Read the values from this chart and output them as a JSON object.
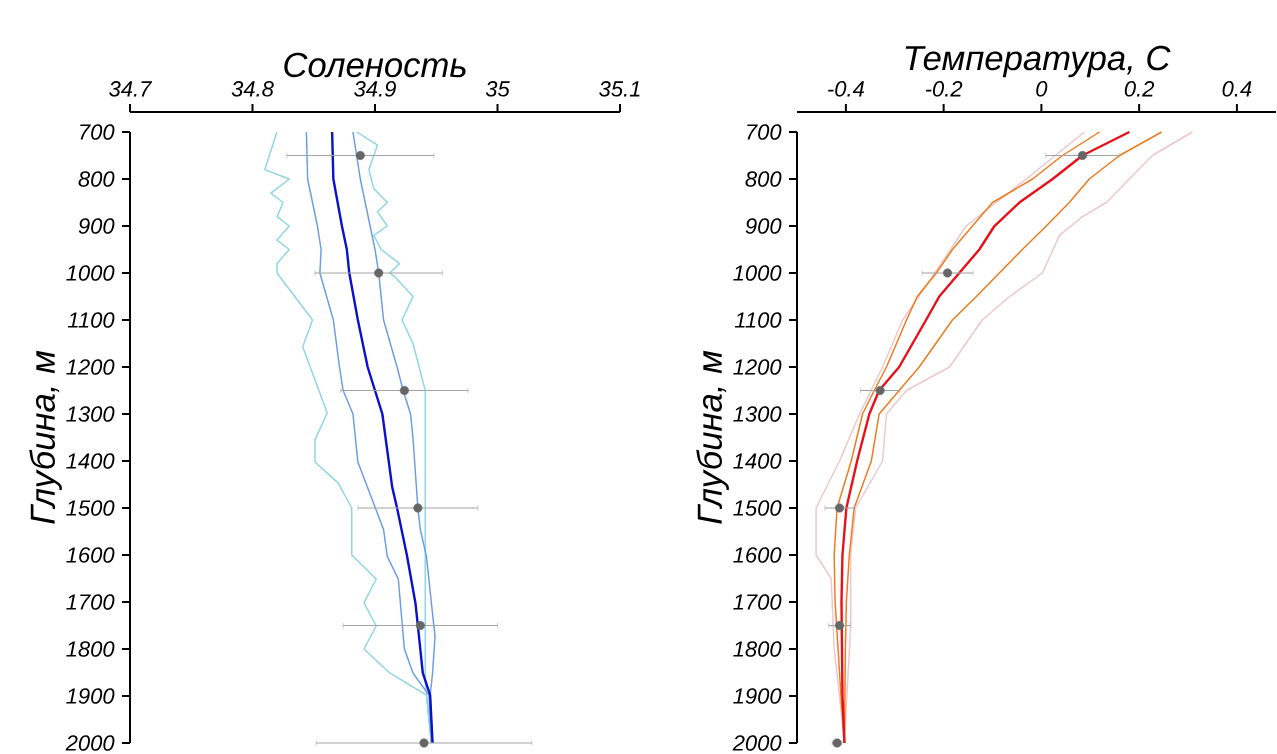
{
  "chart_data": [
    {
      "type": "line",
      "xlabel": "Соленость",
      "ylabel": "Глубина, м",
      "xlim": [
        34.7,
        35.1
      ],
      "ylim": [
        2000,
        700
      ],
      "xticks": [
        34.7,
        34.8,
        34.9,
        35,
        35.1
      ],
      "yticks": [
        700,
        800,
        900,
        1000,
        1100,
        1200,
        1300,
        1400,
        1500,
        1600,
        1700,
        1800,
        1900,
        2000
      ],
      "series": [
        {
          "color": "#8fd5e3",
          "x": [
            34.82,
            34.81,
            34.83,
            34.815,
            34.825,
            34.82,
            34.83,
            34.82,
            34.83,
            34.82,
            34.82,
            34.849,
            34.841,
            34.861,
            34.851,
            34.851,
            34.87,
            34.881,
            34.881,
            34.901,
            34.891,
            34.901,
            34.891,
            34.912,
            34.942,
            34.946
          ],
          "values": [
            700,
            780,
            800,
            830,
            850,
            880,
            900,
            930,
            950,
            980,
            1000,
            1100,
            1157,
            1298,
            1355,
            1402,
            1447,
            1500,
            1600,
            1651,
            1702,
            1751,
            1800,
            1851,
            1898,
            2000
          ]
        },
        {
          "color": "#8fd5e3",
          "x": [
            34.885,
            34.902,
            34.895,
            34.899,
            34.91,
            34.902,
            34.91,
            34.899,
            34.905,
            34.92,
            34.912,
            34.917,
            34.931,
            34.922,
            34.931,
            34.941,
            34.941,
            34.946
          ],
          "values": [
            700,
            728,
            780,
            820,
            850,
            870,
            900,
            920,
            950,
            980,
            1000,
            1010,
            1050,
            1100,
            1150,
            1250,
            1870,
            2000
          ]
        },
        {
          "color": "#6b9de3",
          "x": [
            34.844,
            34.845,
            34.849,
            34.853,
            34.856,
            34.855,
            34.866,
            34.871,
            34.874,
            34.882,
            34.886,
            34.907,
            34.91,
            34.919,
            34.924,
            34.931,
            34.944,
            34.946
          ],
          "values": [
            700,
            800,
            850,
            900,
            950,
            1000,
            1100,
            1200,
            1250,
            1300,
            1402,
            1546,
            1603,
            1651,
            1800,
            1851,
            1898,
            2000
          ]
        },
        {
          "color": "#6b9de3",
          "x": [
            34.882,
            34.888,
            34.896,
            34.9,
            34.903,
            34.907,
            34.918,
            34.923,
            34.929,
            34.931,
            34.935,
            34.937,
            34.942,
            34.946,
            34.949,
            34.947,
            34.945,
            34.947
          ],
          "values": [
            700,
            800,
            900,
            950,
            1000,
            1100,
            1200,
            1250,
            1300,
            1351,
            1500,
            1546,
            1603,
            1702,
            1773,
            1851,
            1900,
            2000
          ]
        },
        {
          "color": "#0a10cc",
          "x": [
            34.865,
            34.866,
            34.873,
            34.877,
            34.879,
            34.886,
            34.894,
            34.906,
            34.914,
            34.918,
            34.926,
            34.933,
            34.935,
            34.939,
            34.945,
            34.947
          ],
          "values": [
            700,
            800,
            900,
            950,
            1000,
            1100,
            1200,
            1300,
            1455,
            1500,
            1600,
            1702,
            1751,
            1851,
            1898,
            2000
          ]
        },
        {
          "type": "scatter",
          "marker": "circle",
          "color": "#666666",
          "x": [
            34.888,
            34.903,
            34.924,
            34.935,
            34.937,
            34.94
          ],
          "values": [
            750,
            1000,
            1250,
            1500,
            1750,
            2000
          ],
          "xerrors": [
            0.06,
            0.052,
            0.052,
            0.049,
            0.063,
            0.088
          ]
        }
      ]
    },
    {
      "type": "line",
      "xlabel": "Температура, С",
      "ylabel": "Глубина, м",
      "xlim": [
        -0.5,
        0.48
      ],
      "ylim": [
        2000,
        700
      ],
      "xticks": [
        -0.4,
        -0.2,
        0,
        0.2,
        0.4
      ],
      "yticks": [
        700,
        800,
        900,
        1000,
        1100,
        1200,
        1300,
        1400,
        1500,
        1600,
        1700,
        1800,
        1900,
        2000
      ],
      "series": [
        {
          "color": "#ecc7cc",
          "x": [
            0.088,
            -0.031,
            -0.154,
            -0.218,
            -0.284,
            -0.325,
            -0.372,
            -0.413,
            -0.461,
            -0.461,
            -0.43,
            -0.424,
            -0.413,
            -0.403
          ],
          "values": [
            700,
            800,
            900,
            1000,
            1100,
            1200,
            1300,
            1400,
            1500,
            1600,
            1650,
            1800,
            1900,
            2000
          ]
        },
        {
          "color": "#ecc7cc",
          "x": [
            0.309,
            0.227,
            0.18,
            0.133,
            0.084,
            0.037,
            0.002,
            -0.065,
            -0.121,
            -0.188,
            -0.276,
            -0.317,
            -0.325,
            -0.38,
            -0.39,
            -0.39,
            -0.398,
            -0.403
          ],
          "values": [
            700,
            750,
            800,
            850,
            880,
            920,
            1000,
            1050,
            1100,
            1200,
            1250,
            1300,
            1400,
            1500,
            1600,
            1750,
            1900,
            2000
          ]
        },
        {
          "color": "#ee7a1a",
          "x": [
            0.119,
            0.043,
            -0.018,
            -0.1,
            -0.141,
            -0.182,
            -0.215,
            -0.254,
            -0.276,
            -0.317,
            -0.342,
            -0.366,
            -0.389,
            -0.418,
            -0.424,
            -0.422,
            -0.416,
            -0.41,
            -0.403
          ],
          "values": [
            700,
            750,
            800,
            850,
            900,
            950,
            1000,
            1050,
            1100,
            1200,
            1250,
            1300,
            1400,
            1500,
            1600,
            1700,
            1800,
            1900,
            2000
          ]
        },
        {
          "color": "#ee7a1a",
          "x": [
            0.246,
            0.16,
            0.098,
            0.057,
            0.01,
            -0.039,
            -0.086,
            -0.133,
            -0.182,
            -0.25,
            -0.291,
            -0.332,
            -0.348,
            -0.383,
            -0.393,
            -0.399,
            -0.401,
            -0.402,
            -0.403
          ],
          "values": [
            700,
            750,
            800,
            850,
            900,
            950,
            1000,
            1050,
            1100,
            1200,
            1250,
            1300,
            1400,
            1500,
            1600,
            1700,
            1800,
            1900,
            2000
          ]
        },
        {
          "color": "#e8111a",
          "x": [
            0.18,
            0.084,
            0.023,
            -0.045,
            -0.096,
            -0.127,
            -0.168,
            -0.209,
            -0.236,
            -0.291,
            -0.332,
            -0.352,
            -0.377,
            -0.399,
            -0.407,
            -0.409,
            -0.408,
            -0.407,
            -0.403
          ],
          "values": [
            700,
            750,
            800,
            850,
            900,
            950,
            1000,
            1050,
            1100,
            1200,
            1250,
            1300,
            1400,
            1500,
            1600,
            1700,
            1800,
            1900,
            2000
          ]
        },
        {
          "type": "scatter",
          "marker": "circle",
          "color": "#666666",
          "x": [
            0.084,
            -0.192,
            -0.33,
            -0.413,
            -0.413,
            -0.418
          ],
          "values": [
            750,
            1000,
            1250,
            1500,
            1750,
            2000
          ],
          "xerrors": [
            0.075,
            0.052,
            0.04,
            0.03,
            0.022,
            0.01
          ]
        }
      ]
    }
  ]
}
